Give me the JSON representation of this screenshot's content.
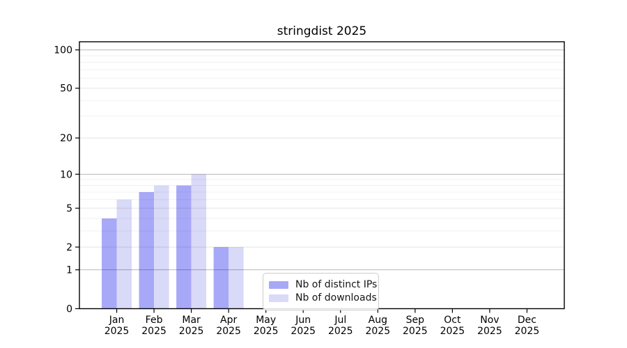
{
  "chart_data": {
    "type": "bar",
    "title": "stringdist 2025",
    "xlabel": "",
    "ylabel": "",
    "categories": [
      "Jan",
      "Feb",
      "Mar",
      "Apr",
      "May",
      "Jun",
      "Jul",
      "Aug",
      "Sep",
      "Oct",
      "Nov",
      "Dec"
    ],
    "x_tick_second_line": "2025",
    "series": [
      {
        "name": "Nb of distinct IPs",
        "color": "#a8a8f8",
        "values": [
          4,
          7,
          8,
          2,
          0,
          0,
          0,
          0,
          0,
          0,
          0,
          0
        ]
      },
      {
        "name": "Nb of downloads",
        "color": "#d9d9f8",
        "values": [
          6,
          8,
          10,
          2,
          0,
          0,
          0,
          0,
          0,
          0,
          0,
          0
        ]
      }
    ],
    "yscale": "log1p",
    "y_ticks": [
      0,
      1,
      2,
      5,
      10,
      20,
      50,
      100
    ],
    "ylim": [
      0,
      116
    ],
    "grid": {
      "major": [
        1,
        10,
        100
      ],
      "mid": [
        2,
        5,
        20,
        50
      ],
      "minor": [
        3,
        4,
        6,
        7,
        8,
        9,
        30,
        40,
        60,
        70,
        80,
        90
      ]
    },
    "legend_position": "inside-bottom-center-left",
    "axis_color": "#000000",
    "background_color": "#ffffff"
  }
}
